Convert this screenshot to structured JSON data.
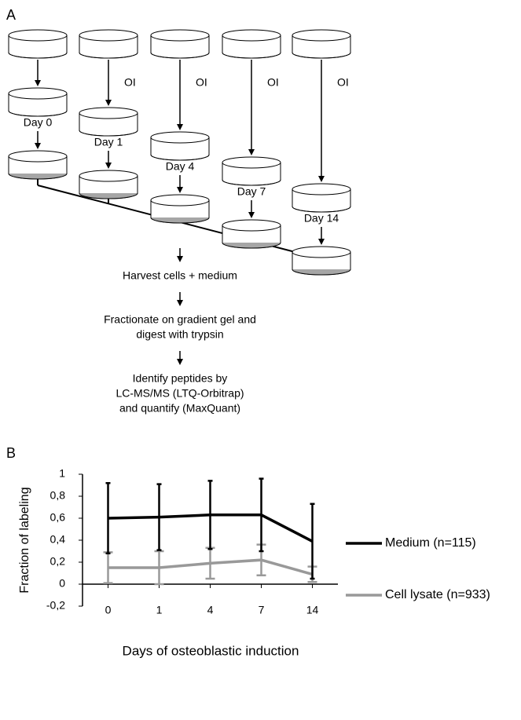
{
  "panel_a": {
    "label": "A",
    "oi_labels": [
      "OI",
      "OI",
      "OI",
      "OI"
    ],
    "days": [
      "Day 0",
      "Day 1",
      "Day 4",
      "Day 7",
      "Day 14"
    ],
    "steps": [
      [
        "Harvest cells + medium"
      ],
      [
        "Fractionate on gradient gel and",
        "digest with trypsin"
      ],
      [
        "Identify peptides by",
        "LC-MS/MS (LTQ-Orbitrap)",
        "and quantify (MaxQuant)"
      ]
    ]
  },
  "chart_data": {
    "type": "line",
    "panel_label": "B",
    "x_label": "Days of osteoblastic induction",
    "y_label": "Fraction of labeling",
    "categories": [
      "0",
      "1",
      "4",
      "7",
      "14"
    ],
    "series": [
      {
        "name": "Medium (n=115)",
        "color": "#000000",
        "values": [
          0.6,
          0.61,
          0.63,
          0.63,
          0.39
        ],
        "errors": [
          0.32,
          0.3,
          0.31,
          0.33,
          0.34
        ]
      },
      {
        "name": "Cell lysate (n=933)",
        "color": "#999999",
        "values": [
          0.15,
          0.15,
          0.19,
          0.22,
          0.09
        ],
        "errors": [
          0.14,
          0.15,
          0.14,
          0.14,
          0.07
        ]
      }
    ],
    "ylim": [
      -0.2,
      1
    ],
    "yticks": [
      {
        "value": -0.2,
        "label": "-0,2"
      },
      0,
      {
        "value": 0.2,
        "label": "0,2"
      },
      {
        "value": 0.4,
        "label": "0,4"
      },
      {
        "value": 0.6,
        "label": "0,6"
      },
      {
        "value": 0.8,
        "label": "0,8"
      },
      1
    ],
    "legend": "right"
  }
}
